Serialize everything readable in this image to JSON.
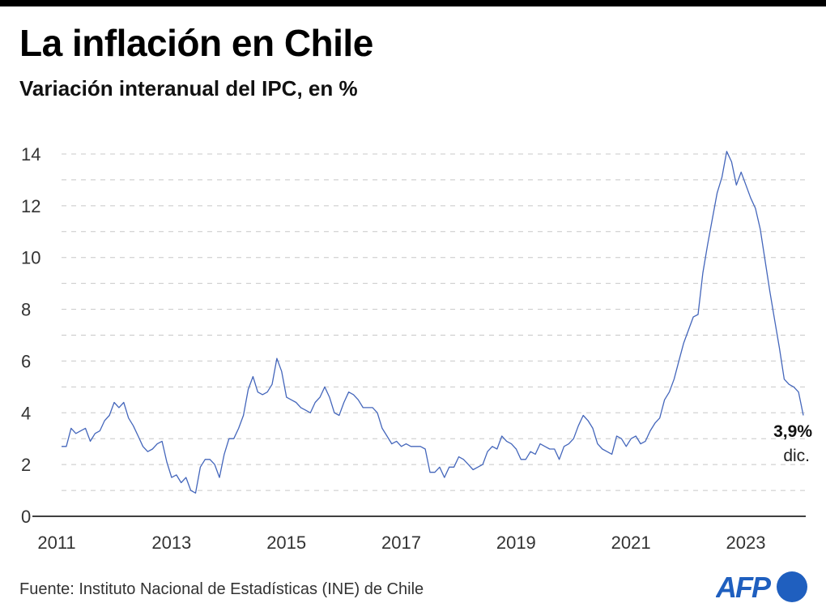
{
  "title": "La inflación en Chile",
  "subtitle": "Variación interanual del IPC, en %",
  "source": "Fuente: Instituto Nacional de Estadísticas (INE) de Chile",
  "logo": "AFP",
  "colors": {
    "line": "#4466bb",
    "logo": "#1f5fbf"
  },
  "chart_data": {
    "type": "line",
    "title": "La inflación en Chile",
    "subtitle": "Variación interanual del IPC, en %",
    "x_start": "2011-01",
    "x_end": "2023-12",
    "frequency": "monthly",
    "ylim": [
      0,
      14
    ],
    "yticks": [
      "0",
      "2",
      "4",
      "6",
      "8",
      "10",
      "12",
      "14"
    ],
    "xticks": [
      "2011",
      "2013",
      "2015",
      "2017",
      "2019",
      "2021",
      "2023"
    ],
    "grid": "horizontal dashed",
    "annotation": {
      "value": "3,9%",
      "label": "dic."
    },
    "series": [
      {
        "values": [
          2.7,
          2.7,
          3.4,
          3.2,
          3.3,
          3.4,
          2.9,
          3.2,
          3.3,
          3.7,
          3.9,
          4.4,
          4.2,
          4.4,
          3.8,
          3.5,
          3.1,
          2.7,
          2.5,
          2.6,
          2.8,
          2.9,
          2.1,
          1.5,
          1.6,
          1.3,
          1.5,
          1.0,
          0.9,
          1.9,
          2.2,
          2.2,
          2.0,
          1.5,
          2.4,
          3.0,
          3.0,
          3.4,
          3.9,
          4.9,
          5.4,
          4.8,
          4.7,
          4.8,
          5.1,
          6.1,
          5.6,
          4.6,
          4.5,
          4.4,
          4.2,
          4.1,
          4.0,
          4.4,
          4.6,
          5.0,
          4.6,
          4.0,
          3.9,
          4.4,
          4.8,
          4.7,
          4.5,
          4.2,
          4.2,
          4.2,
          4.0,
          3.4,
          3.1,
          2.8,
          2.9,
          2.7,
          2.8,
          2.7,
          2.7,
          2.7,
          2.6,
          1.7,
          1.7,
          1.9,
          1.5,
          1.9,
          1.9,
          2.3,
          2.2,
          2.0,
          1.8,
          1.9,
          2.0,
          2.5,
          2.7,
          2.6,
          3.1,
          2.9,
          2.8,
          2.6,
          2.2,
          2.2,
          2.5,
          2.4,
          2.8,
          2.7,
          2.6,
          2.6,
          2.2,
          2.7,
          2.8,
          3.0,
          3.5,
          3.9,
          3.7,
          3.4,
          2.8,
          2.6,
          2.5,
          2.4,
          3.1,
          3.0,
          2.7,
          3.0,
          3.1,
          2.8,
          2.9,
          3.3,
          3.6,
          3.8,
          4.5,
          4.8,
          5.3,
          6.0,
          6.7,
          7.2,
          7.7,
          7.8,
          9.4,
          10.5,
          11.5,
          12.5,
          13.1,
          14.1,
          13.7,
          12.8,
          13.3,
          12.8,
          12.3,
          11.9,
          11.1,
          9.9,
          8.7,
          7.6,
          6.5,
          5.3,
          5.1,
          5.0,
          4.8,
          3.9
        ]
      }
    ]
  }
}
